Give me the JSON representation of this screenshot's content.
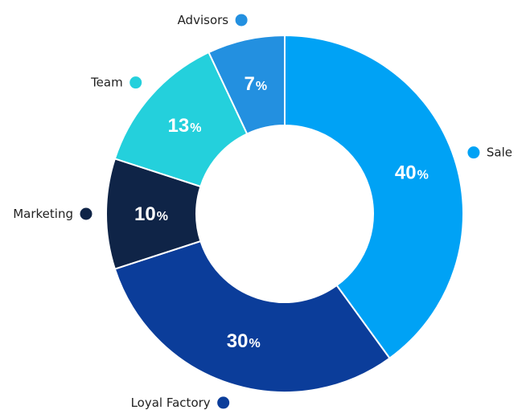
{
  "chart_data": {
    "type": "pie",
    "donut": true,
    "categories": [
      "Sale",
      "Loyal Factory",
      "Marketing",
      "Team",
      "Advisors"
    ],
    "values": [
      40,
      30,
      10,
      13,
      7
    ],
    "value_labels": [
      "40",
      "30",
      "10",
      "13",
      "7"
    ],
    "unit": "%",
    "colors": [
      "#00a2f5",
      "#0b3d9a",
      "#0f2447",
      "#24d0dc",
      "#2390e0"
    ],
    "title": "",
    "legend_placement": "outside-labels"
  }
}
